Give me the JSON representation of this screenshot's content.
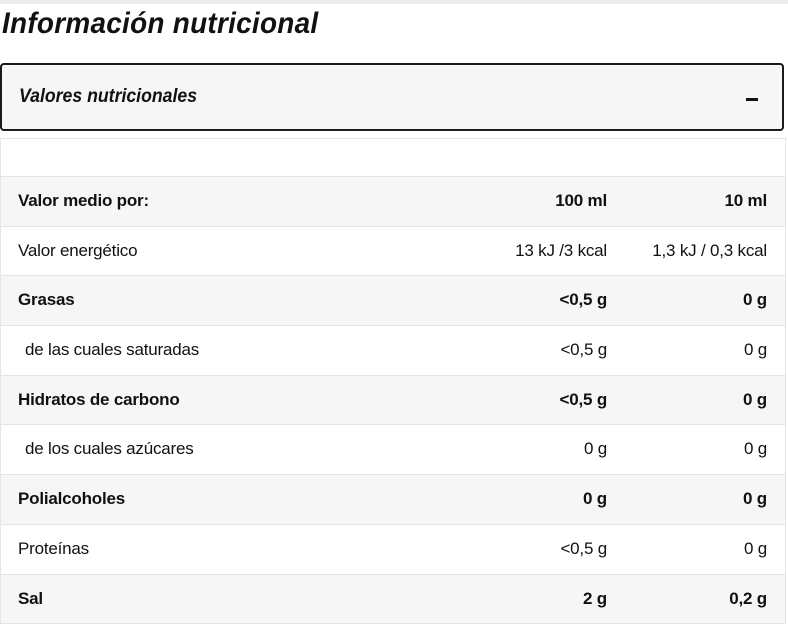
{
  "page": {
    "title": "Información nutricional"
  },
  "accordion": {
    "label": "Valores nutricionales",
    "toggle_symbol": "–"
  },
  "table": {
    "header": {
      "label": "Valor medio por:",
      "col_100": "100 ml",
      "col_10": "10 ml"
    },
    "rows": [
      {
        "label": "Valor energético",
        "col_100": "13 kJ /3 kcal",
        "col_10": "1,3 kJ / 0,3 kcal"
      },
      {
        "label": "Grasas",
        "col_100": "<0,5 g",
        "col_10": "0 g"
      },
      {
        "label": "de las cuales saturadas",
        "col_100": "<0,5 g",
        "col_10": "0 g"
      },
      {
        "label": "Hidratos de carbono",
        "col_100": "<0,5 g",
        "col_10": "0 g"
      },
      {
        "label": "de los cuales azúcares",
        "col_100": "0 g",
        "col_10": "0 g"
      },
      {
        "label": "Polialcoholes",
        "col_100": "0 g",
        "col_10": "0 g"
      },
      {
        "label": "Proteínas",
        "col_100": "<0,5 g",
        "col_10": "0 g"
      },
      {
        "label": "Sal",
        "col_100": "2 g",
        "col_10": "0,2 g"
      }
    ]
  }
}
